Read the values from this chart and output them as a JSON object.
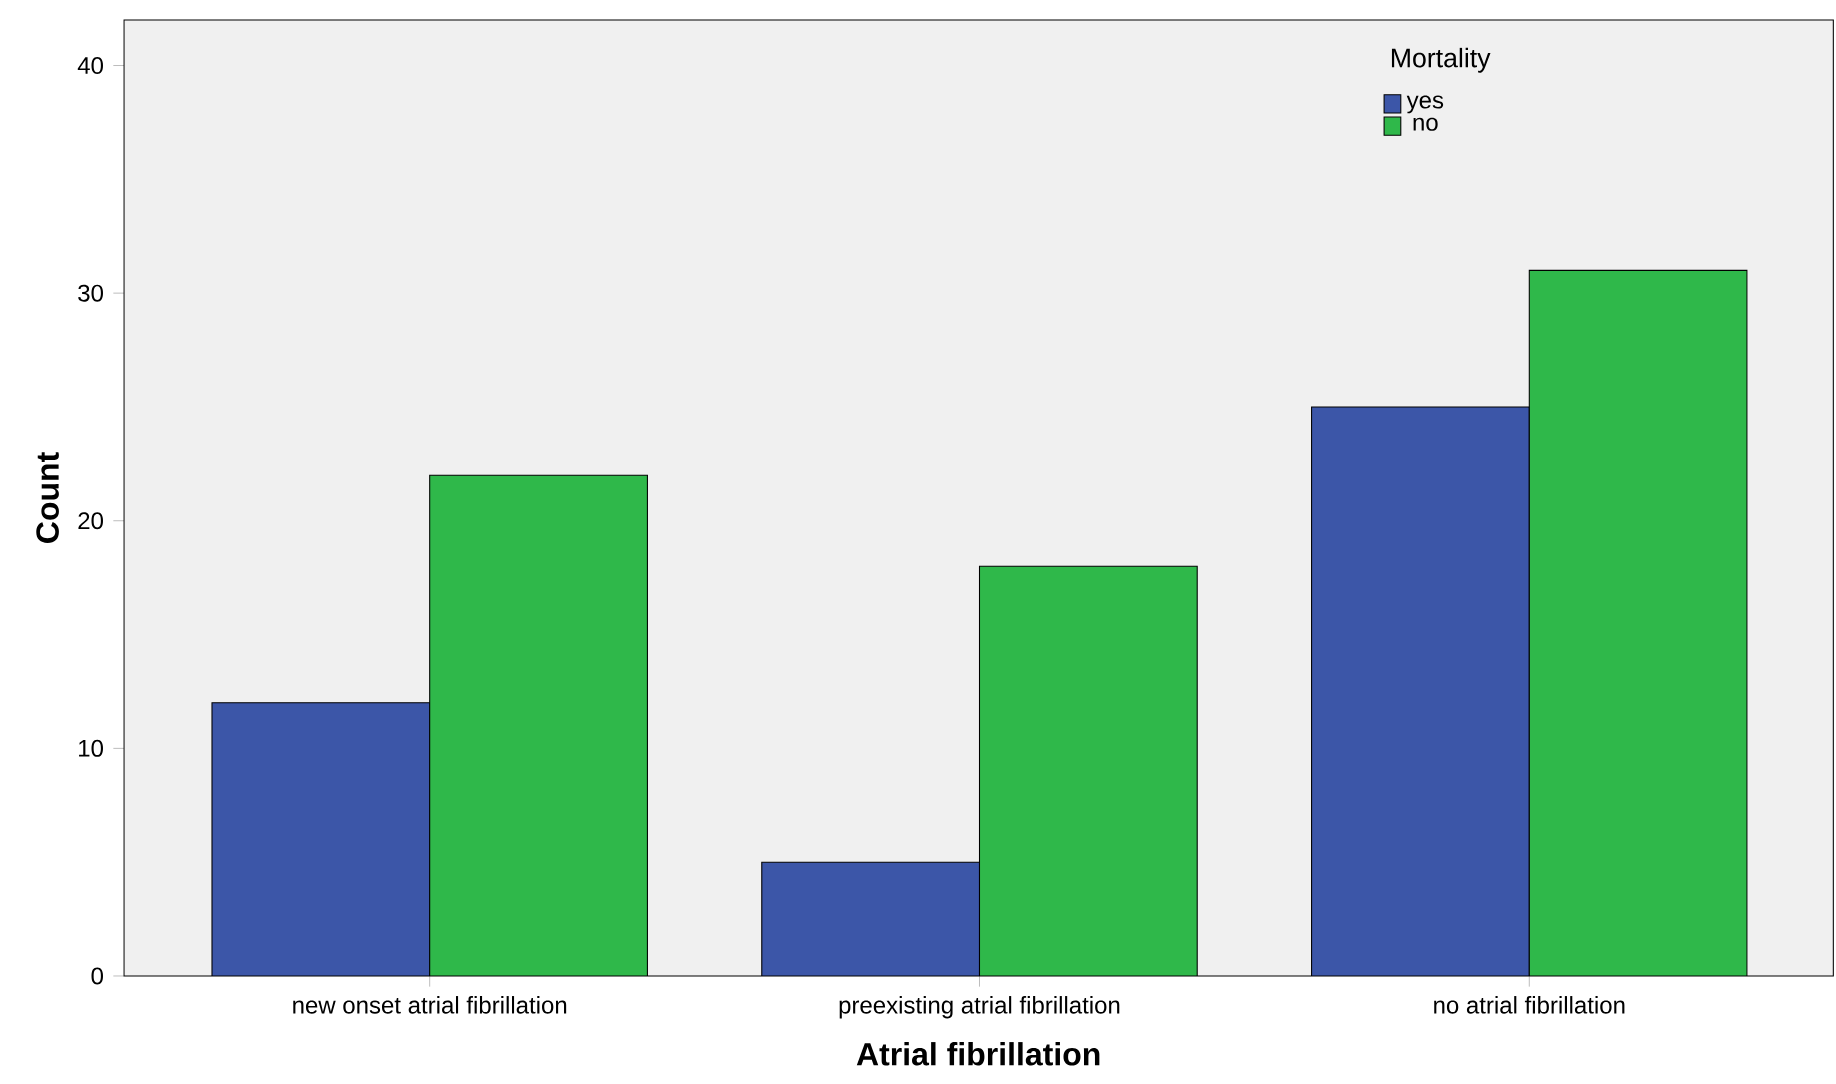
{
  "chart_data": {
    "type": "bar",
    "xlabel": "Atrial fibrillation",
    "ylabel": "Count",
    "legend_title": "Mortality",
    "categories": [
      "new onset atrial fibrillation",
      "preexisting atrial fibrillation",
      "no atrial fibrillation"
    ],
    "series": [
      {
        "name": "yes",
        "color": "#3c56a8",
        "values": [
          12,
          5,
          25
        ]
      },
      {
        "name": "no",
        "color": "#2fb84a",
        "values": [
          22,
          18,
          31
        ]
      }
    ],
    "ylim": [
      0,
      42
    ],
    "yticks": [
      0,
      10,
      20,
      30,
      40
    ],
    "legend": "top right"
  }
}
